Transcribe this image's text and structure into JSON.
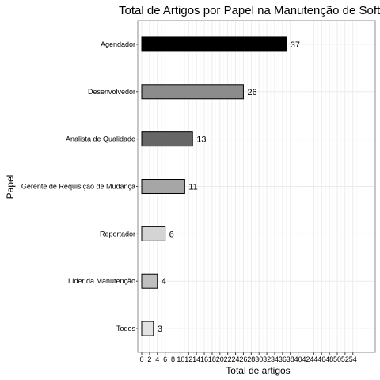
{
  "chart_data": {
    "type": "bar",
    "orientation": "horizontal",
    "title": "Total de Artigos por Papel na Manutenção de Software",
    "xlabel": "Total de artigos",
    "ylabel": "Papel",
    "categories": [
      "Agendador",
      "Desenvolvedor",
      "Analista de Qualidade",
      "Gerente de Requisição de Mudança",
      "Reportador",
      "Líder da Manutenção",
      "Todos"
    ],
    "values": [
      37,
      26,
      13,
      11,
      6,
      4,
      3
    ],
    "bar_colors": [
      "#000000",
      "#8c8c8c",
      "#666666",
      "#a6a6a6",
      "#d4d4d4",
      "#bfbfbf",
      "#e3e3e3"
    ],
    "xlim": [
      0,
      56
    ],
    "x_ticks": [
      0,
      2,
      4,
      6,
      8,
      10,
      12,
      14,
      16,
      18,
      20,
      22,
      24,
      26,
      28,
      30,
      32,
      34,
      36,
      38,
      40,
      42,
      44,
      46,
      48,
      50,
      52,
      54
    ],
    "x_tick_labels": [
      "0",
      "2",
      "4",
      "6",
      "8",
      "10",
      "12",
      "14",
      "16",
      "18",
      "20",
      "22",
      "24",
      "26",
      "28",
      "30",
      "32",
      "34",
      "36",
      "38",
      "40",
      "42",
      "44",
      "46",
      "48",
      "50",
      "52",
      "54"
    ],
    "grid": true,
    "legend": false
  }
}
